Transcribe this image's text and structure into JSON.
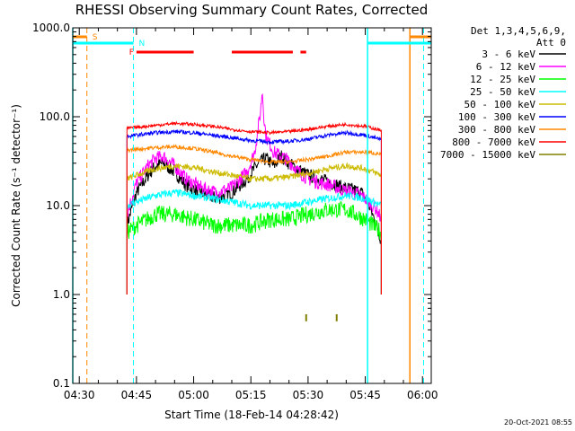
{
  "chart_data": {
    "type": "line",
    "title": "RHESSI Observing Summary Count Rates, Corrected",
    "xlabel": "Start Time (18-Feb-14 04:28:42)",
    "ylabel": "Corrected Count Rate (s⁻¹ detector⁻¹)",
    "yscale": "log",
    "ylim": [
      0.1,
      1000
    ],
    "xlim_minutes": [
      -1.7,
      92.3
    ],
    "x_ticks": [
      {
        "label": "04:30",
        "min": 0
      },
      {
        "label": "04:45",
        "min": 15
      },
      {
        "label": "05:00",
        "min": 30
      },
      {
        "label": "05:15",
        "min": 45
      },
      {
        "label": "05:30",
        "min": 60
      },
      {
        "label": "05:45",
        "min": 75
      },
      {
        "label": "06:00",
        "min": 90
      }
    ],
    "y_ticks": [
      {
        "label": "0.1",
        "value": 0.1
      },
      {
        "label": "1.0",
        "value": 1
      },
      {
        "label": "10.0",
        "value": 10
      },
      {
        "label": "100.0",
        "value": 100
      },
      {
        "label": "1000.0",
        "value": 1000
      }
    ],
    "legend_header": [
      "Det 1,3,4,5,6,9,",
      "Att 0"
    ],
    "series": [
      {
        "name": "3 - 6 keV",
        "color": "#000000",
        "points": [
          [
            12.5,
            6
          ],
          [
            15,
            14
          ],
          [
            18,
            22
          ],
          [
            20,
            28
          ],
          [
            22,
            30
          ],
          [
            25,
            24
          ],
          [
            28,
            17
          ],
          [
            32,
            14
          ],
          [
            36,
            12
          ],
          [
            40,
            14
          ],
          [
            44,
            20
          ],
          [
            47,
            30
          ],
          [
            49,
            34
          ],
          [
            51,
            28
          ],
          [
            53,
            36
          ],
          [
            55,
            30
          ],
          [
            57,
            26
          ],
          [
            60,
            22
          ],
          [
            63,
            20
          ],
          [
            66,
            18
          ],
          [
            69,
            16
          ],
          [
            72,
            15
          ],
          [
            74,
            14
          ],
          [
            76,
            10
          ],
          [
            78,
            6
          ],
          [
            79.2,
            4
          ]
        ]
      },
      {
        "name": "6 - 12 keV",
        "color": "#ff00ff",
        "points": [
          [
            12.5,
            8
          ],
          [
            15,
            18
          ],
          [
            18,
            28
          ],
          [
            20,
            34
          ],
          [
            22,
            36
          ],
          [
            25,
            28
          ],
          [
            28,
            20
          ],
          [
            32,
            16
          ],
          [
            36,
            14
          ],
          [
            40,
            16
          ],
          [
            44,
            24
          ],
          [
            46,
            40
          ],
          [
            47.5,
            110
          ],
          [
            48,
            200
          ],
          [
            48.5,
            90
          ],
          [
            49,
            60
          ],
          [
            51,
            40
          ],
          [
            53,
            36
          ],
          [
            55,
            32
          ],
          [
            57,
            25
          ],
          [
            60,
            20
          ],
          [
            63,
            18
          ],
          [
            66,
            17
          ],
          [
            69,
            15
          ],
          [
            72,
            14
          ],
          [
            74,
            13
          ],
          [
            76,
            11
          ],
          [
            78,
            9
          ],
          [
            79.2,
            7
          ]
        ]
      },
      {
        "name": "12 - 25 keV",
        "color": "#00ff00",
        "points": [
          [
            12.5,
            5
          ],
          [
            15,
            6
          ],
          [
            20,
            8
          ],
          [
            25,
            8
          ],
          [
            30,
            7
          ],
          [
            35,
            6
          ],
          [
            40,
            6
          ],
          [
            45,
            6
          ],
          [
            50,
            7
          ],
          [
            55,
            7
          ],
          [
            60,
            8
          ],
          [
            65,
            9
          ],
          [
            70,
            9
          ],
          [
            75,
            7
          ],
          [
            79.2,
            5
          ]
        ]
      },
      {
        "name": "25 - 50 keV",
        "color": "#00ffff",
        "points": [
          [
            12.5,
            10
          ],
          [
            15,
            11
          ],
          [
            20,
            13
          ],
          [
            25,
            14
          ],
          [
            30,
            13
          ],
          [
            35,
            12
          ],
          [
            40,
            11
          ],
          [
            45,
            10
          ],
          [
            50,
            10
          ],
          [
            55,
            10
          ],
          [
            60,
            11
          ],
          [
            65,
            12
          ],
          [
            70,
            13
          ],
          [
            75,
            12
          ],
          [
            79.2,
            10
          ]
        ]
      },
      {
        "name": "50 - 100 keV",
        "color": "#ccbb00",
        "points": [
          [
            12.5,
            20
          ],
          [
            15,
            22
          ],
          [
            20,
            26
          ],
          [
            25,
            28
          ],
          [
            30,
            27
          ],
          [
            35,
            24
          ],
          [
            40,
            22
          ],
          [
            45,
            20
          ],
          [
            50,
            20
          ],
          [
            55,
            21
          ],
          [
            60,
            23
          ],
          [
            65,
            26
          ],
          [
            70,
            28
          ],
          [
            75,
            26
          ],
          [
            79.2,
            22
          ]
        ]
      },
      {
        "name": "100 - 300 keV",
        "color": "#0000ff",
        "points": [
          [
            12.5,
            60
          ],
          [
            15,
            62
          ],
          [
            20,
            66
          ],
          [
            25,
            68
          ],
          [
            30,
            66
          ],
          [
            35,
            62
          ],
          [
            40,
            58
          ],
          [
            45,
            54
          ],
          [
            50,
            52
          ],
          [
            55,
            53
          ],
          [
            60,
            56
          ],
          [
            65,
            62
          ],
          [
            70,
            66
          ],
          [
            75,
            62
          ],
          [
            79.2,
            55
          ]
        ]
      },
      {
        "name": "300 - 800 keV",
        "color": "#ff8800",
        "points": [
          [
            12.5,
            42
          ],
          [
            15,
            43
          ],
          [
            20,
            45
          ],
          [
            25,
            46
          ],
          [
            30,
            44
          ],
          [
            35,
            40
          ],
          [
            40,
            36
          ],
          [
            45,
            33
          ],
          [
            50,
            31
          ],
          [
            55,
            31
          ],
          [
            60,
            33
          ],
          [
            65,
            36
          ],
          [
            70,
            40
          ],
          [
            75,
            40
          ],
          [
            79.2,
            38
          ]
        ]
      },
      {
        "name": "800 - 7000 keV",
        "color": "#ff0000",
        "points": [
          [
            12.5,
            74
          ],
          [
            15,
            76
          ],
          [
            20,
            80
          ],
          [
            25,
            84
          ],
          [
            30,
            82
          ],
          [
            35,
            78
          ],
          [
            40,
            72
          ],
          [
            45,
            68
          ],
          [
            50,
            66
          ],
          [
            55,
            68
          ],
          [
            60,
            72
          ],
          [
            65,
            78
          ],
          [
            70,
            82
          ],
          [
            75,
            78
          ],
          [
            79.2,
            70
          ]
        ]
      },
      {
        "name": "7000 - 15000 keV",
        "color": "#808000",
        "points": [
          [
            59.5,
            0.6
          ],
          [
            59.5,
            0.5
          ],
          [
            67.5,
            0.6
          ],
          [
            67.5,
            0.5
          ]
        ]
      }
    ],
    "annotations": {
      "saa_label": "S",
      "night_label": "N",
      "flare_label": "F",
      "saa_color": "#ff8800",
      "night_color": "#00ffff",
      "flare_color": "#ff0000",
      "saa_bars_min": [
        [
          -1.7,
          2.0
        ],
        [
          86.7,
          92.3
        ]
      ],
      "night_bars_min": [
        [
          -1.7,
          14.2
        ],
        [
          75.6,
          92.3
        ]
      ],
      "flare_bars_min": [
        [
          15,
          30
        ],
        [
          40,
          56
        ],
        [
          58,
          59.5
        ]
      ],
      "saa_lines_min": [
        2.0,
        86.7
      ],
      "night_lines_min": [
        14.2,
        90.3
      ],
      "solid_vlines": [
        {
          "min": -1.7,
          "color": "#00ffff"
        },
        {
          "min": 75.6,
          "color": "#00ffff"
        },
        {
          "min": 86.7,
          "color": "#ff8800"
        }
      ]
    },
    "timestamp": "20-Oct-2021 08:55"
  }
}
